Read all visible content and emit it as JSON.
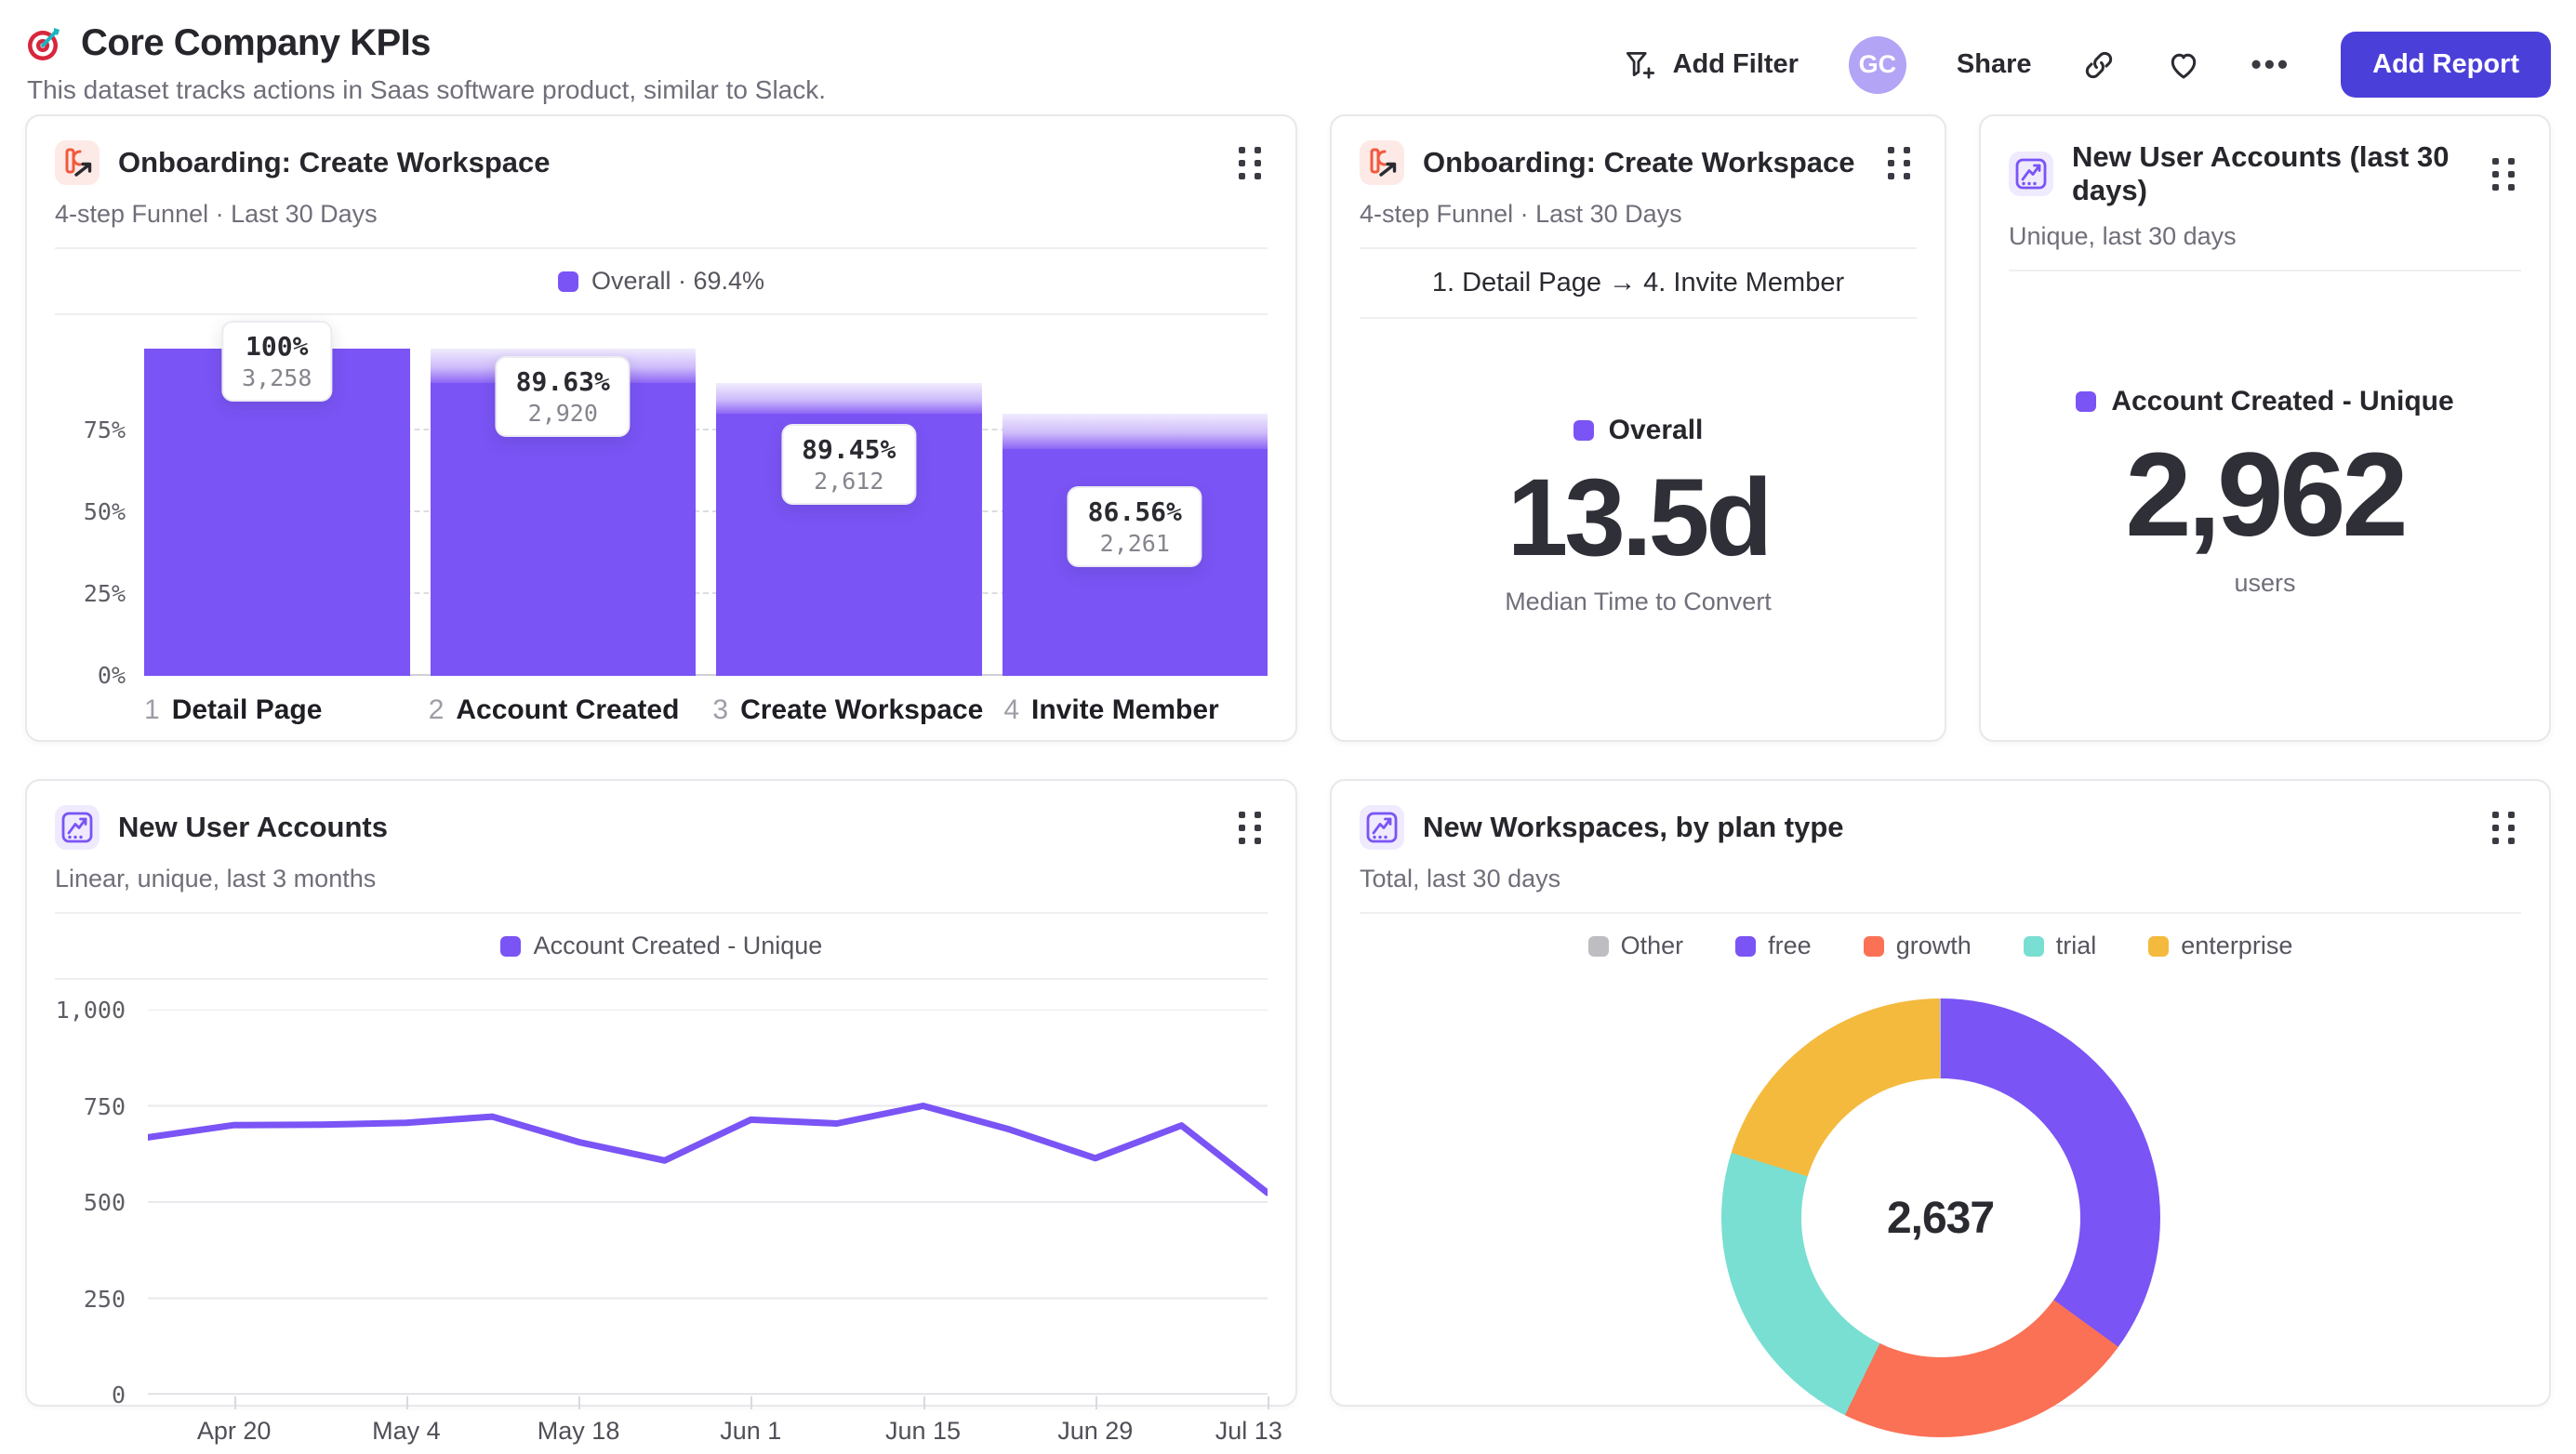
{
  "header": {
    "title": "Core Company KPIs",
    "subtitle": "This dataset tracks actions in Saas software product, similar to Slack.",
    "actions": {
      "add_filter": "Add Filter",
      "avatar_initials": "GC",
      "share": "Share",
      "more": "•••",
      "add_report": "Add Report"
    }
  },
  "colors": {
    "accent_purple": "#7A54F5",
    "button_indigo": "#4B3FD9",
    "avatar_bg": "#B3A4F6",
    "coral": "#FB7155",
    "teal": "#79DFD2",
    "yellow": "#F4BA3E",
    "gray_swatch": "#BDBDC2",
    "funnel_icon_red": "#F2593D"
  },
  "cards": {
    "funnel": {
      "title": "Onboarding: Create Workspace",
      "subtitle": "4-step Funnel · Last 30 Days",
      "legend_label": "Overall · 69.4%"
    },
    "convert": {
      "title": "Onboarding: Create Workspace",
      "subtitle": "4-step Funnel · Last 30 Days",
      "range_label": "1. Detail Page → 4. Invite Member",
      "legend_label": "Overall",
      "value": "13.5d",
      "caption": "Median Time to Convert"
    },
    "accounts30": {
      "title": "New User Accounts (last 30 days)",
      "subtitle": "Unique, last 30 days",
      "legend_label": "Account Created - Unique",
      "value": "2,962",
      "caption": "users"
    },
    "line": {
      "title": "New User Accounts",
      "subtitle": "Linear, unique, last 3 months",
      "legend_label": "Account Created - Unique"
    },
    "donut": {
      "title": "New Workspaces, by plan type",
      "subtitle": "Total, last 30 days",
      "center_value": "2,637"
    }
  },
  "chart_data": [
    {
      "type": "bar",
      "variant": "funnel",
      "title": "Onboarding: Create Workspace · 4-step Funnel · Last 30 Days",
      "overall_conversion": "69.4%",
      "bar_color": "#7A54F5",
      "ylim": [
        0,
        100
      ],
      "y_ticks": [
        {
          "label": "75%",
          "value": 75
        },
        {
          "label": "50%",
          "value": 50
        },
        {
          "label": "25%",
          "value": 25
        },
        {
          "label": "0%",
          "value": 0
        }
      ],
      "steps": [
        {
          "index": "1",
          "label": "Detail Page",
          "count": 3258,
          "count_label": "3,258",
          "step_conversion": "100%"
        },
        {
          "index": "2",
          "label": "Account Created",
          "count": 2920,
          "count_label": "2,920",
          "step_conversion": "89.63%"
        },
        {
          "index": "3",
          "label": "Create Workspace",
          "count": 2612,
          "count_label": "2,612",
          "step_conversion": "89.45%"
        },
        {
          "index": "4",
          "label": "Invite Member",
          "count": 2261,
          "count_label": "2,261",
          "step_conversion": "86.56%"
        }
      ]
    },
    {
      "type": "line",
      "title": "New User Accounts · Linear, unique, last 3 months",
      "line_color": "#7A54F5",
      "grid": true,
      "ylim": [
        0,
        1000
      ],
      "y_ticks": [
        {
          "label": "0",
          "value": 0
        },
        {
          "label": "250",
          "value": 250
        },
        {
          "label": "500",
          "value": 500
        },
        {
          "label": "750",
          "value": 750
        },
        {
          "label": "1,000",
          "value": 1000
        }
      ],
      "x": [
        "Apr 13",
        "Apr 20",
        "Apr 27",
        "May 4",
        "May 11",
        "May 18",
        "May 25",
        "Jun 1",
        "Jun 8",
        "Jun 15",
        "Jun 22",
        "Jun 29",
        "Jul 6",
        "Jul 13"
      ],
      "x_tick_labels": [
        "Apr 20",
        "May 4",
        "May 18",
        "Jun 1",
        "Jun 15",
        "Jun 29",
        "Jul 13"
      ],
      "series": [
        {
          "name": "Account Created - Unique",
          "values": [
            668,
            700,
            701,
            706,
            722,
            656,
            608,
            714,
            704,
            750,
            689,
            614,
            699,
            524
          ]
        }
      ]
    },
    {
      "type": "pie",
      "variant": "donut",
      "title": "New Workspaces, by plan type · Total, last 30 days",
      "total": 2637,
      "total_label": "2,637",
      "segments": [
        {
          "label": "free",
          "value": 923,
          "pct": 35.0,
          "color": "#7A54F5"
        },
        {
          "label": "growth",
          "value": 585,
          "pct": 22.2,
          "color": "#FB7155"
        },
        {
          "label": "trial",
          "value": 596,
          "pct": 22.6,
          "color": "#79DFD2"
        },
        {
          "label": "enterprise",
          "value": 530,
          "pct": 20.1,
          "color": "#F4BA3E"
        },
        {
          "label": "Other",
          "value": 3,
          "pct": 0.1,
          "color": "#BDBDC2"
        }
      ],
      "legend": [
        {
          "label": "Other",
          "color": "#BDBDC2"
        },
        {
          "label": "free",
          "color": "#7A54F5"
        },
        {
          "label": "growth",
          "color": "#FB7155"
        },
        {
          "label": "trial",
          "color": "#79DFD2"
        },
        {
          "label": "enterprise",
          "color": "#F4BA3E"
        }
      ]
    }
  ]
}
